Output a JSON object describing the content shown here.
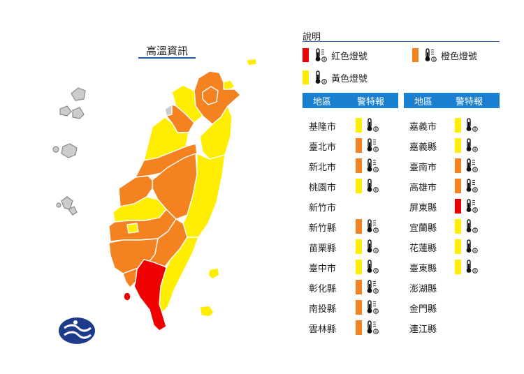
{
  "map": {
    "title": "高溫資訊"
  },
  "legend": {
    "title": "說明",
    "items": [
      {
        "key": "red",
        "label": "紅色燈號",
        "color": "#ee0000"
      },
      {
        "key": "orange",
        "label": "橙色燈號",
        "color": "#f58220"
      },
      {
        "key": "yellow",
        "label": "黃色燈號",
        "color": "#ffee00"
      }
    ]
  },
  "colors": {
    "red": "#ee0000",
    "orange": "#f58220",
    "yellow": "#ffee00",
    "gray": "#cccccc",
    "header": "#1a7fd1"
  },
  "table": {
    "left": {
      "col_region": "地區",
      "col_warning": "警特報",
      "rows": [
        {
          "region": "基隆市",
          "level": "yellow"
        },
        {
          "region": "臺北市",
          "level": "orange"
        },
        {
          "region": "新北市",
          "level": "orange"
        },
        {
          "region": "桃園市",
          "level": "yellow"
        },
        {
          "region": "新竹市",
          "level": "none"
        },
        {
          "region": "新竹縣",
          "level": "orange"
        },
        {
          "region": "苗栗縣",
          "level": "yellow"
        },
        {
          "region": "臺中市",
          "level": "yellow"
        },
        {
          "region": "彰化縣",
          "level": "orange"
        },
        {
          "region": "南投縣",
          "level": "orange"
        },
        {
          "region": "雲林縣",
          "level": "orange"
        }
      ]
    },
    "right": {
      "col_region": "地區",
      "col_warning": "警特報",
      "rows": [
        {
          "region": "嘉義市",
          "level": "yellow"
        },
        {
          "region": "嘉義縣",
          "level": "yellow"
        },
        {
          "region": "臺南市",
          "level": "orange"
        },
        {
          "region": "高雄市",
          "level": "orange"
        },
        {
          "region": "屏東縣",
          "level": "red"
        },
        {
          "region": "宜蘭縣",
          "level": "yellow"
        },
        {
          "region": "花蓮縣",
          "level": "yellow"
        },
        {
          "region": "臺東縣",
          "level": "yellow"
        },
        {
          "region": "澎湖縣",
          "level": "none"
        },
        {
          "region": "金門縣",
          "level": "none"
        },
        {
          "region": "連江縣",
          "level": "none"
        }
      ]
    }
  }
}
